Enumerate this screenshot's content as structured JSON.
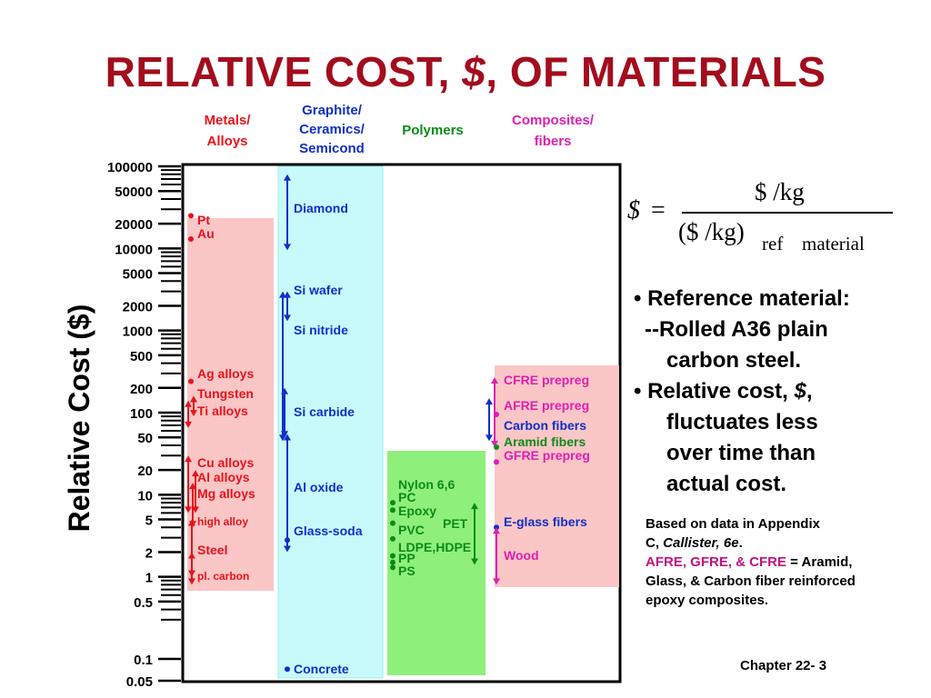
{
  "title": {
    "main": "RELATIVE COST, ",
    "sym": "$",
    "rest": ", OF MATERIALS"
  },
  "colors": {
    "title": "#a30d1d",
    "metals": "#e8141c",
    "graphite": "#1030c8",
    "polymers": "#0c8a1a",
    "composites": "#e020b0"
  },
  "chart_data": {
    "type": "range",
    "ylabel": "Relative Cost ($)",
    "yscale": "log",
    "ylim": [
      0.05,
      100000
    ],
    "y_ticks": [
      "100000",
      "50000",
      "20000",
      "10000",
      "5000",
      "2000",
      "1000",
      "500",
      "200",
      "100",
      "50",
      "20",
      "10",
      "5",
      "2",
      "1",
      "0.5",
      "0.1",
      "0.05"
    ],
    "y_tick_values": [
      100000,
      50000,
      20000,
      10000,
      5000,
      2000,
      1000,
      500,
      200,
      100,
      50,
      20,
      10,
      5,
      2,
      1,
      0.5,
      0.1,
      0.05
    ],
    "categories": [
      {
        "name_lines": [
          "Metals/",
          "Alloys"
        ],
        "color": "#e8141c",
        "bg": "#fbc6c6"
      },
      {
        "name_lines": [
          "Graphite/",
          "Ceramics/",
          "Semicond"
        ],
        "color": "#1030c8",
        "bg": "#c8fafc"
      },
      {
        "name_lines": [
          "Polymers"
        ],
        "color": "#0c8a1a",
        "bg": "#8ef07a"
      },
      {
        "name_lines": [
          "Composites/",
          "fibers"
        ],
        "color": "#e020b0",
        "bg": "#fbc6c6"
      }
    ],
    "materials": [
      {
        "cat": 0,
        "label": "Pt",
        "kind": "point",
        "value": 25000
      },
      {
        "cat": 0,
        "label": "Au",
        "kind": "point",
        "value": 13000
      },
      {
        "cat": 0,
        "label": "Ag alloys",
        "kind": "point",
        "value": 240
      },
      {
        "cat": 0,
        "label": "Tungsten",
        "kind": "range",
        "min": 90,
        "max": 160
      },
      {
        "cat": 0,
        "label": "Ti alloys",
        "kind": "range",
        "min": 65,
        "max": 140
      },
      {
        "cat": 0,
        "label": "Cu alloys",
        "kind": "range",
        "min": 6,
        "max": 30
      },
      {
        "cat": 0,
        "label": "Al alloys",
        "kind": "range",
        "min": 6,
        "max": 20
      },
      {
        "cat": 0,
        "label": "Mg alloys",
        "kind": "range",
        "min": 4,
        "max": 14
      },
      {
        "cat": 0,
        "label": "high alloy",
        "kind": "range",
        "min": 1,
        "max": 5
      },
      {
        "cat": 0,
        "label": "Steel",
        "kind": "label"
      },
      {
        "cat": 0,
        "label": "pl. carbon",
        "kind": "range",
        "min": 0.8,
        "max": 2
      },
      {
        "cat": 1,
        "label": "Diamond",
        "kind": "range",
        "min": 9500,
        "max": 80000
      },
      {
        "cat": 1,
        "label": "Si wafer",
        "kind": "range",
        "min": 1300,
        "max": 3000
      },
      {
        "cat": 1,
        "label": "Si nitride",
        "kind": "range",
        "min": 45,
        "max": 3000
      },
      {
        "cat": 1,
        "label": "Si carbide",
        "kind": "range",
        "min": 50,
        "max": 200
      },
      {
        "cat": 1,
        "label": "Al oxide",
        "kind": "range",
        "min": 2,
        "max": 55
      },
      {
        "cat": 1,
        "label": "Glass-soda",
        "kind": "point",
        "value": 2.8
      },
      {
        "cat": 1,
        "label": "Concrete",
        "kind": "point",
        "value": 0.075
      },
      {
        "cat": 2,
        "label": "Nylon 6,6",
        "kind": "point",
        "value": 8
      },
      {
        "cat": 2,
        "label": "PC",
        "kind": "point",
        "value": 6.5
      },
      {
        "cat": 2,
        "label": "Epoxy",
        "kind": "point",
        "value": 4.5
      },
      {
        "cat": 2,
        "label": "PET",
        "kind": "range",
        "min": 1.4,
        "max": 8
      },
      {
        "cat": 2,
        "label": "PVC",
        "kind": "point",
        "value": 2.9
      },
      {
        "cat": 2,
        "label": "LDPE,HDPE",
        "kind": "point",
        "value": 1.8
      },
      {
        "cat": 2,
        "label": "PP",
        "kind": "point",
        "value": 1.5
      },
      {
        "cat": 2,
        "label": "PS",
        "kind": "point",
        "value": 1.3
      },
      {
        "cat": 3,
        "label": "CFRE prepreg",
        "kind": "range",
        "min": 38,
        "max": 270
      },
      {
        "cat": 3,
        "label": "AFRE prepreg",
        "kind": "point",
        "value": 95
      },
      {
        "cat": 3,
        "label": "Carbon fibers",
        "kind": "range",
        "min": 45,
        "max": 150
      },
      {
        "cat": 3,
        "label": "Aramid fibers",
        "kind": "point",
        "value": 38
      },
      {
        "cat": 3,
        "label": "GFRE prepreg",
        "kind": "point",
        "value": 25
      },
      {
        "cat": 3,
        "label": "E-glass fibers",
        "kind": "point",
        "value": 4
      },
      {
        "cat": 3,
        "label": "Wood",
        "kind": "range",
        "min": 0.8,
        "max": 4
      }
    ]
  },
  "formula": {
    "lhs": "$",
    "eq": "=",
    "num": "$ /kg",
    "den": "($ /kg)",
    "sub1": "ref",
    "sub2": "material"
  },
  "bullets": {
    "b1": "• Reference material:",
    "b1a": "--Rolled A36 plain",
    "b1b": "carbon steel.",
    "b2a": "• Relative cost, ",
    "b2sym": "$",
    "b2b": ",",
    "b2c": "fluctuates less",
    "b2d": "over time than",
    "b2e": "actual cost."
  },
  "note": {
    "l1": "Based on data in Appendix",
    "l2a": "C, ",
    "l2b": "Callister, 6e",
    "l2c": ".",
    "l3a": "AFRE, GFRE, & CFRE",
    "l3b": " = Aramid,",
    "l4": "Glass, & Carbon fiber reinforced",
    "l5": "epoxy composites."
  },
  "footer": {
    "chapter": "Chapter 22- 3"
  }
}
